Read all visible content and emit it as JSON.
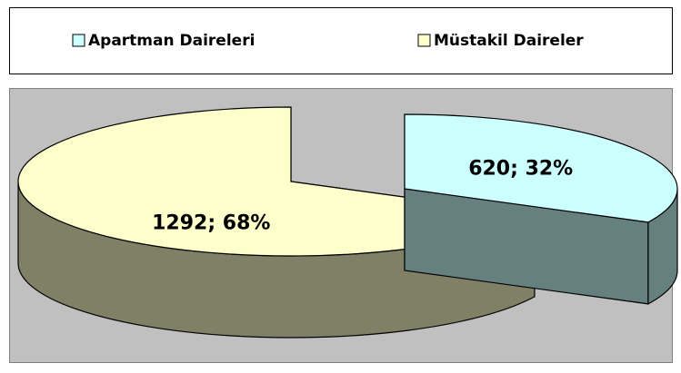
{
  "chart_data": {
    "type": "pie3d",
    "categories": [
      "Apartman Daireleri",
      "Müstakil Daireler"
    ],
    "values": [
      620,
      1292
    ],
    "value_labels": [
      "620; 32%",
      "1292; 68%"
    ],
    "colors": [
      "#ccffff",
      "#ffffcc"
    ],
    "legend": "top"
  }
}
